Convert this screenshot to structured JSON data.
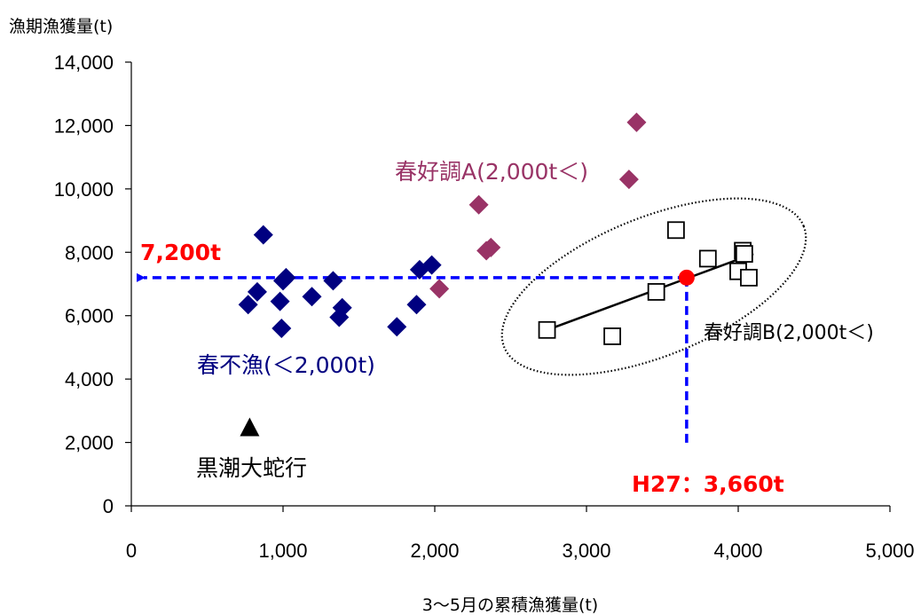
{
  "chart_data": {
    "type": "scatter",
    "ylabel": "漁期漁獲量(t)",
    "xlabel": "3～5月の累積漁獲量(t)",
    "xlim": [
      0,
      5000
    ],
    "ylim": [
      0,
      14000
    ],
    "x_ticks": [
      0,
      1000,
      2000,
      3000,
      4000,
      5000
    ],
    "x_tick_labels": [
      "0",
      "1,000",
      "2,000",
      "3,000",
      "4,000",
      "5,000"
    ],
    "y_ticks": [
      0,
      2000,
      4000,
      6000,
      8000,
      10000,
      12000,
      14000
    ],
    "y_tick_labels": [
      "0",
      "2,000",
      "4,000",
      "6,000",
      "8,000",
      "10,000",
      "12,000",
      "14,000"
    ],
    "grid": false,
    "series": [
      {
        "name": "春不漁(＜2,000t)",
        "marker": "diamond",
        "color": "#000080",
        "x": [
          770,
          830,
          870,
          980,
          990,
          1000,
          1020,
          1190,
          1330,
          1370,
          1390,
          1750,
          1880,
          1900,
          1980
        ],
        "y": [
          6350,
          6750,
          8550,
          6450,
          5600,
          7100,
          7200,
          6600,
          7100,
          5950,
          6250,
          5650,
          6350,
          7450,
          7600
        ]
      },
      {
        "name": "春好調A(2,000t＜)",
        "marker": "diamond",
        "color": "#993366",
        "x": [
          2030,
          2290,
          2340,
          2370,
          3280,
          3330
        ],
        "y": [
          6850,
          9500,
          8050,
          8150,
          10300,
          12100
        ]
      },
      {
        "name": "春好調B(2,000t＜)",
        "marker": "square-open",
        "color": "#000000",
        "x": [
          2740,
          3170,
          3460,
          3590,
          3800,
          4000,
          4030,
          4040,
          4070
        ],
        "y": [
          5550,
          5350,
          6750,
          8700,
          7800,
          7400,
          8050,
          7950,
          7200
        ]
      },
      {
        "name": "黒潮大蛇行",
        "marker": "triangle",
        "color": "#000000",
        "x": [
          780
        ],
        "y": [
          2450
        ]
      }
    ],
    "regression_line": {
      "x": [
        2740,
        4100
      ],
      "y": [
        5550,
        7950
      ]
    },
    "highlight_point": {
      "x": 3660,
      "y": 7200,
      "color": "#ff0000"
    },
    "annotations": {
      "y_value_label": "7,200t",
      "x_value_label": "H27：3,660t",
      "group_a_label": "春好調A(2,000t＜)",
      "group_b_label": "春好調B(2,000t＜)",
      "group_c_label": "春不漁(＜2,000t)",
      "triangle_label": "黒潮大蛇行"
    },
    "colors": {
      "highlight": "#ff0000",
      "dashed_guides": "#0000ff"
    }
  }
}
